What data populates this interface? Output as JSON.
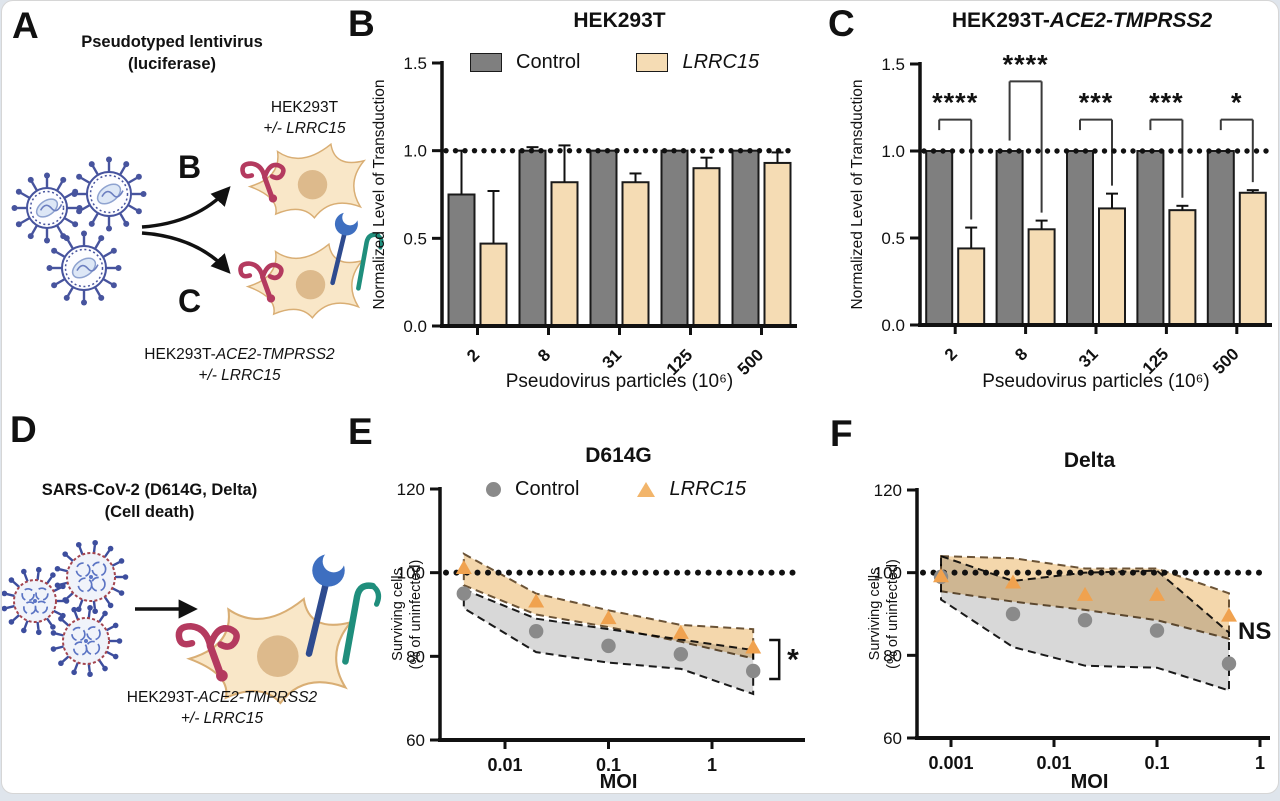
{
  "panelA": {
    "label": "A",
    "title1": "Pseudotyped lentivirus",
    "title2": "(luciferase)",
    "arrow_top_label": "B",
    "arrow_bottom_label": "C",
    "cell_top_line1": "HEK293T",
    "cell_top_line2": "+/- LRRC15",
    "cell_bottom_line1_plain": "HEK293T-",
    "cell_bottom_line1_italic": "ACE2-TMPRSS2",
    "cell_bottom_line2": "+/- LRRC15"
  },
  "panelD": {
    "label": "D",
    "title1": "SARS-CoV-2 (D614G, Delta)",
    "title2": "(Cell death)",
    "cell_line1_plain": "HEK293T-",
    "cell_line1_italic": "ACE2-TMPRSS2",
    "cell_line2": "+/- LRRC15"
  },
  "colors": {
    "control_bar": "#7f7f7f",
    "lrrc15_bar": "#f5dcb4",
    "control_marker": "#8a8a8a",
    "lrrc15_marker": "#f0a24f",
    "control_band_fill": "#d4d4d4",
    "control_band_edge": "#1a1a1a",
    "lrrc15_band_fill": "#f3d3a3",
    "lrrc15_band_edge": "#6b5336",
    "axis": "#111111"
  },
  "chart_data": [
    {
      "panel": "B",
      "type": "bar",
      "title": "HEK293T",
      "categories": [
        "2",
        "8",
        "31",
        "125",
        "500"
      ],
      "series": [
        {
          "name": "Control",
          "color": "#7f7f7f",
          "values": [
            0.75,
            1.0,
            1.0,
            1.0,
            1.0
          ],
          "err_up": [
            0.25,
            0.02,
            0,
            0,
            0
          ]
        },
        {
          "name": "LRRC15",
          "color": "#f5dcb4",
          "values": [
            0.47,
            0.82,
            0.82,
            0.9,
            0.93
          ],
          "err_up": [
            0.3,
            0.21,
            0.05,
            0.06,
            0.06
          ]
        }
      ],
      "ylabel": "Normalized Level of Transduction",
      "xlabel": "Pseudovirus particles (10⁶)",
      "ylim": [
        0,
        1.5
      ],
      "yticks": [
        "0.0",
        "0.5",
        "1.0",
        "1.5"
      ],
      "ref_line": 1.0,
      "legend": [
        {
          "label": "Control",
          "italic": false
        },
        {
          "label": "LRRC15",
          "italic": true
        }
      ]
    },
    {
      "panel": "C",
      "type": "bar",
      "title_plain": "HEK293T-",
      "title_italic": "ACE2-TMPRSS2",
      "categories": [
        "2",
        "8",
        "31",
        "125",
        "500"
      ],
      "series": [
        {
          "name": "Control",
          "color": "#7f7f7f",
          "values": [
            1.0,
            1.0,
            1.0,
            1.0,
            1.0
          ],
          "err_up": [
            0,
            0,
            0,
            0,
            0
          ]
        },
        {
          "name": "LRRC15",
          "color": "#f5dcb4",
          "values": [
            0.44,
            0.55,
            0.67,
            0.66,
            0.76
          ],
          "err_up": [
            0.12,
            0.05,
            0.085,
            0.025,
            0.015
          ]
        }
      ],
      "ylabel": "Normalized Level of Transduction",
      "xlabel": "Pseudovirus particles (10⁶)",
      "ylim": [
        0,
        1.5
      ],
      "yticks": [
        "0.0",
        "0.5",
        "1.0",
        "1.5"
      ],
      "ref_line": 1.0,
      "significance": [
        {
          "stars": "****",
          "bar_y": 1.18,
          "left_drop": 0.06
        },
        {
          "stars": "****",
          "bar_y": 1.4,
          "left_drop": 0.34
        },
        {
          "stars": "***",
          "bar_y": 1.18,
          "left_drop": 0.06
        },
        {
          "stars": "***",
          "bar_y": 1.18,
          "left_drop": 0.06
        },
        {
          "stars": "*",
          "bar_y": 1.18,
          "left_drop": 0.06
        }
      ]
    },
    {
      "panel": "E",
      "type": "scatter",
      "title": "D614G",
      "x": [
        0.004,
        0.02,
        0.1,
        0.5,
        2.5
      ],
      "xticks": [
        0.01,
        0.1,
        1
      ],
      "xtick_labels": [
        "0.01",
        "0.1",
        "1"
      ],
      "series": [
        {
          "name": "Control",
          "marker": "circle",
          "color": "#8a8a8a",
          "values": [
            95,
            86,
            82.5,
            80.5,
            76.5
          ],
          "band_high": [
            96,
            89,
            86.5,
            84,
            81.5
          ],
          "band_low": [
            91.5,
            81,
            78.5,
            77,
            71
          ],
          "band_fill": "#d4d4d4",
          "band_edge": "#1a1a1a"
        },
        {
          "name": "LRRC15",
          "marker": "triangle",
          "color": "#f0a24f",
          "values": [
            101,
            93,
            89,
            85.5,
            82
          ],
          "band_high": [
            104.5,
            95,
            91,
            87.5,
            86.5
          ],
          "band_low": [
            97,
            90,
            87,
            83.5,
            79.5
          ],
          "band_fill": "#f3d3a3",
          "band_edge": "#6b5336"
        }
      ],
      "ylabel1": "Surviving cells",
      "ylabel2": "(% of uninfected)",
      "xlabel": "MOI",
      "ylim": [
        60,
        120
      ],
      "yticks": [
        "60",
        "80",
        "100",
        "120"
      ],
      "ref_line": 100,
      "annotation": "*",
      "legend": [
        {
          "label": "Control",
          "italic": false
        },
        {
          "label": "LRRC15",
          "italic": true
        }
      ]
    },
    {
      "panel": "F",
      "type": "scatter",
      "title": "Delta",
      "x": [
        0.0008,
        0.004,
        0.02,
        0.1,
        0.5
      ],
      "xticks": [
        0.001,
        0.01,
        0.1,
        1
      ],
      "xtick_labels": [
        "0.001",
        "0.01",
        "0.1",
        "1"
      ],
      "series": [
        {
          "name": "Control",
          "marker": "circle",
          "color": "#8a8a8a",
          "values": [
            99,
            90,
            88.5,
            86,
            78
          ],
          "band_high": [
            104,
            98,
            100,
            100.5,
            85.5
          ],
          "band_low": [
            93.5,
            82,
            77.5,
            77,
            71.5
          ],
          "band_fill": "#d4d4d4",
          "band_edge": "#1a1a1a"
        },
        {
          "name": "LRRC15",
          "marker": "triangle",
          "color": "#f0a24f",
          "values": [
            99,
            97.5,
            94.5,
            94.5,
            89.5
          ],
          "band_high": [
            104,
            103.5,
            101,
            101,
            95
          ],
          "band_low": [
            95.5,
            93,
            91,
            88.5,
            84
          ],
          "band_fill": "#f3d3a3",
          "band_edge": "#6b5336"
        }
      ],
      "ylabel1": "Surviving cells",
      "ylabel2": "(% of uninfected)",
      "xlabel": "MOI",
      "ylim": [
        60,
        120
      ],
      "yticks": [
        "60",
        "80",
        "100",
        "120"
      ],
      "ref_line": 100,
      "annotation": "NS"
    }
  ]
}
